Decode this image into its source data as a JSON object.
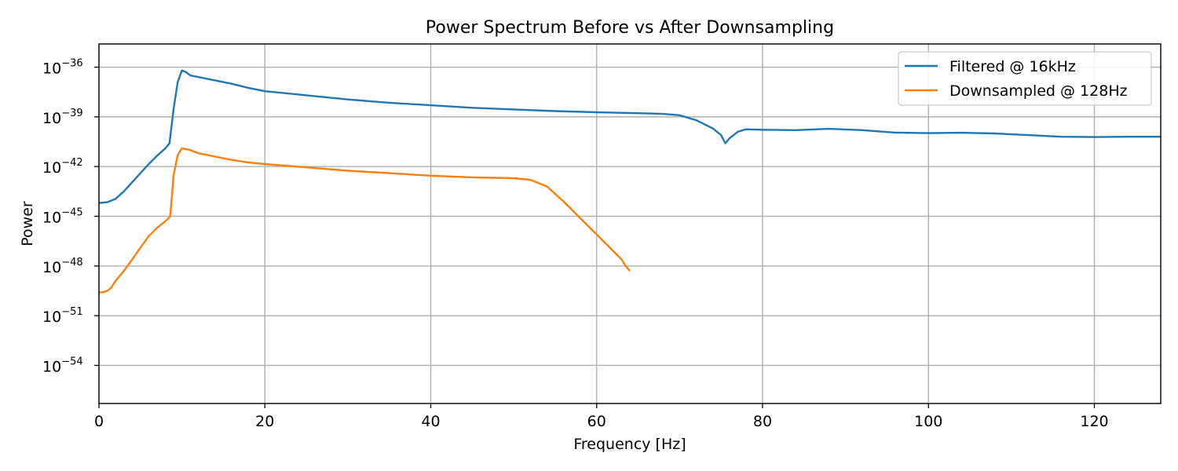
{
  "chart_data": {
    "type": "line",
    "title": "Power Spectrum Before vs After Downsampling",
    "xlabel": "Frequency [Hz]",
    "ylabel": "Power",
    "xlim": [
      0,
      128
    ],
    "ylim_log10": [
      -56.3,
      -34.6
    ],
    "yscale": "log",
    "grid": true,
    "legend_position": "top-right",
    "x_ticks": [
      0,
      20,
      40,
      60,
      80,
      100,
      120
    ],
    "y_ticks": [
      {
        "base": "10",
        "exp": "−36",
        "log10": -36
      },
      {
        "base": "10",
        "exp": "−39",
        "log10": -39
      },
      {
        "base": "10",
        "exp": "−42",
        "log10": -42
      },
      {
        "base": "10",
        "exp": "−45",
        "log10": -45
      },
      {
        "base": "10",
        "exp": "−48",
        "log10": -48
      },
      {
        "base": "10",
        "exp": "−51",
        "log10": -51
      },
      {
        "base": "10",
        "exp": "−54",
        "log10": -54
      }
    ],
    "series": [
      {
        "name": "Filtered @ 16kHz",
        "color": "#1f77b4",
        "x_log10_power": [
          [
            0,
            -44.2
          ],
          [
            1,
            -44.15
          ],
          [
            2,
            -43.95
          ],
          [
            3,
            -43.5
          ],
          [
            4,
            -42.95
          ],
          [
            5,
            -42.4
          ],
          [
            6,
            -41.85
          ],
          [
            7,
            -41.35
          ],
          [
            8,
            -40.9
          ],
          [
            8.5,
            -40.6
          ],
          [
            9,
            -38.5
          ],
          [
            9.5,
            -36.9
          ],
          [
            10,
            -36.2
          ],
          [
            10.5,
            -36.3
          ],
          [
            11,
            -36.5
          ],
          [
            12,
            -36.6
          ],
          [
            14,
            -36.8
          ],
          [
            16,
            -37.0
          ],
          [
            18,
            -37.25
          ],
          [
            20,
            -37.45
          ],
          [
            25,
            -37.7
          ],
          [
            30,
            -37.95
          ],
          [
            35,
            -38.15
          ],
          [
            40,
            -38.3
          ],
          [
            45,
            -38.45
          ],
          [
            50,
            -38.55
          ],
          [
            55,
            -38.65
          ],
          [
            60,
            -38.72
          ],
          [
            65,
            -38.78
          ],
          [
            68,
            -38.82
          ],
          [
            70,
            -38.9
          ],
          [
            72,
            -39.2
          ],
          [
            74,
            -39.7
          ],
          [
            75,
            -40.1
          ],
          [
            75.5,
            -40.6
          ],
          [
            76,
            -40.3
          ],
          [
            77,
            -39.9
          ],
          [
            78,
            -39.75
          ],
          [
            80,
            -39.78
          ],
          [
            84,
            -39.8
          ],
          [
            88,
            -39.72
          ],
          [
            92,
            -39.8
          ],
          [
            96,
            -39.95
          ],
          [
            100,
            -39.98
          ],
          [
            104,
            -39.96
          ],
          [
            108,
            -40.0
          ],
          [
            112,
            -40.1
          ],
          [
            116,
            -40.2
          ],
          [
            120,
            -40.22
          ],
          [
            124,
            -40.2
          ],
          [
            128,
            -40.2
          ]
        ]
      },
      {
        "name": "Downsampled @ 128Hz",
        "color": "#ff7f0e",
        "x_log10_power": [
          [
            0,
            -49.6
          ],
          [
            0.5,
            -49.58
          ],
          [
            1,
            -49.5
          ],
          [
            1.5,
            -49.3
          ],
          [
            2,
            -48.9
          ],
          [
            3,
            -48.3
          ],
          [
            4,
            -47.6
          ],
          [
            5,
            -46.9
          ],
          [
            6,
            -46.2
          ],
          [
            7,
            -45.7
          ],
          [
            8,
            -45.3
          ],
          [
            8.6,
            -45.0
          ],
          [
            9,
            -42.5
          ],
          [
            9.5,
            -41.3
          ],
          [
            10,
            -40.9
          ],
          [
            11,
            -41.0
          ],
          [
            12,
            -41.2
          ],
          [
            14,
            -41.4
          ],
          [
            16,
            -41.6
          ],
          [
            18,
            -41.75
          ],
          [
            20,
            -41.85
          ],
          [
            25,
            -42.05
          ],
          [
            30,
            -42.25
          ],
          [
            35,
            -42.4
          ],
          [
            40,
            -42.55
          ],
          [
            45,
            -42.65
          ],
          [
            50,
            -42.7
          ],
          [
            52,
            -42.8
          ],
          [
            54,
            -43.2
          ],
          [
            56,
            -44.1
          ],
          [
            58,
            -45.1
          ],
          [
            60,
            -46.1
          ],
          [
            62,
            -47.1
          ],
          [
            63,
            -47.6
          ],
          [
            63.5,
            -48.0
          ],
          [
            64,
            -48.3
          ]
        ]
      }
    ]
  }
}
